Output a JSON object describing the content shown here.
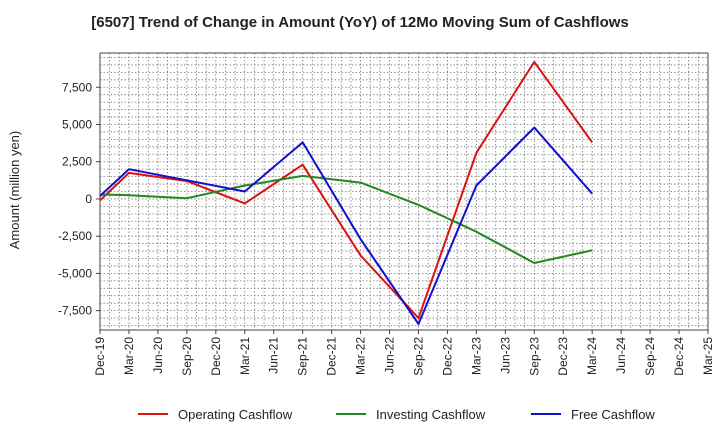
{
  "chart_data": {
    "type": "line",
    "title": "[6507]  Trend of Change in Amount (YoY) of 12Mo Moving Sum of Cashflows",
    "xlabel": "",
    "ylabel": "Amount (million yen)",
    "ylim": [
      -8800,
      9800
    ],
    "yticks": [
      7500,
      5000,
      2500,
      0,
      -2500,
      -5000,
      -7500
    ],
    "ytick_labels": [
      "7,500",
      "5,000",
      "2,500",
      "0",
      "-2,500",
      "-5,000",
      "-7,500"
    ],
    "categories": [
      "Dec-19",
      "Mar-20",
      "Jun-20",
      "Sep-20",
      "Dec-20",
      "Mar-21",
      "Jun-21",
      "Sep-21",
      "Dec-21",
      "Mar-22",
      "Jun-22",
      "Sep-22",
      "Dec-22",
      "Mar-23",
      "Jun-23",
      "Sep-23",
      "Dec-23",
      "Mar-24",
      "Jun-24",
      "Sep-24",
      "Dec-24",
      "Mar-25"
    ],
    "grid": true,
    "legend_position": "bottom",
    "series": [
      {
        "name": "Operating Cashflow",
        "color": "#dd1111",
        "values": [
          -100,
          1750,
          null,
          1200,
          null,
          -300,
          null,
          2300,
          null,
          -3800,
          null,
          -8000,
          null,
          3100,
          null,
          9200,
          null,
          3800,
          null,
          null,
          null,
          null
        ]
      },
      {
        "name": "Investing Cashflow",
        "color": "#228822",
        "values": [
          300,
          250,
          null,
          50,
          null,
          900,
          null,
          1550,
          null,
          1100,
          null,
          -400,
          null,
          -2200,
          null,
          -4300,
          null,
          -3450,
          null,
          null,
          null,
          null
        ]
      },
      {
        "name": "Free Cashflow",
        "color": "#1111cc",
        "values": [
          200,
          2000,
          null,
          1250,
          null,
          500,
          null,
          3800,
          null,
          -2700,
          null,
          -8400,
          null,
          900,
          null,
          4800,
          null,
          350,
          null,
          null,
          null,
          null
        ]
      }
    ]
  }
}
